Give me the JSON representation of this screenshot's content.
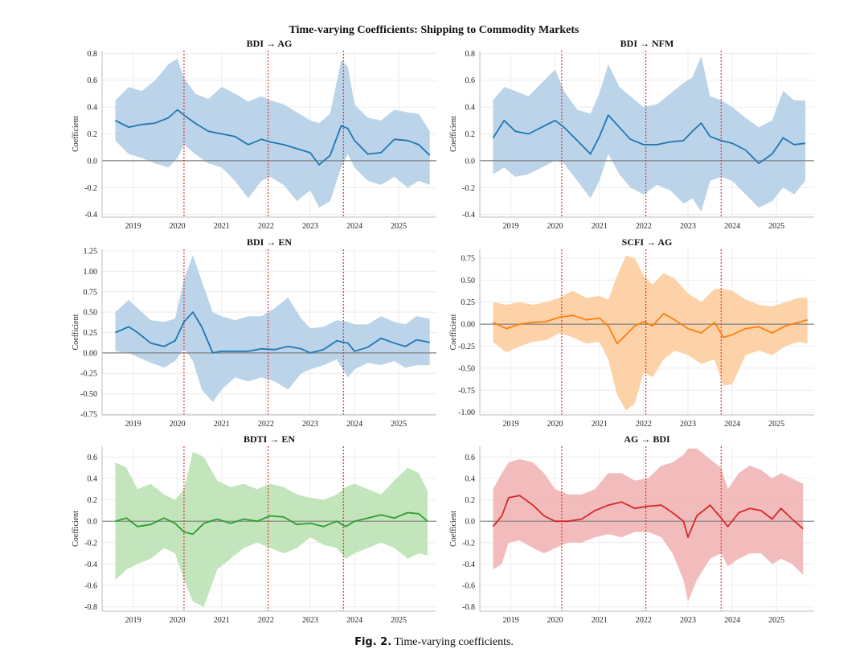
{
  "figure": {
    "suptitle": "Time-varying Coefficients: Shipping to Commodity Markets",
    "caption_label": "Fig. 2.",
    "caption_text": "Time-varying coefficients."
  },
  "colors": {
    "blue_line": "#1f77b4",
    "blue_band": "#b7d2e8",
    "orange_line": "#ff7f0e",
    "orange_band": "#fdd0a4",
    "green_line": "#2ca02c",
    "green_band": "#c0e4b8",
    "red_line": "#d62728",
    "red_band": "#f2b8b8",
    "vline": "#e03030",
    "zero": "#808080",
    "grid": "#ececec"
  },
  "chart_data": [
    {
      "type": "line",
      "title": "BDI → AG",
      "ylabel": "Coefficient",
      "xlim": [
        2018.3,
        2025.85
      ],
      "ylim": [
        -0.42,
        0.82
      ],
      "yticks": [
        -0.4,
        -0.2,
        0.0,
        0.2,
        0.4,
        0.6,
        0.8
      ],
      "ytick_labels": [
        "-0.4",
        "-0.2",
        "0.0",
        "0.2",
        "0.4",
        "0.6",
        "0.8"
      ],
      "xticks": [
        2019,
        2020,
        2021,
        2022,
        2023,
        2024,
        2025
      ],
      "xtick_labels": [
        "2019",
        "2020",
        "2021",
        "2022",
        "2023",
        "2024",
        "2025"
      ],
      "vlines": [
        2020.15,
        2022.05,
        2023.75
      ],
      "color": "blue",
      "series": [
        {
          "name": "coefficient",
          "x": [
            2018.6,
            2018.9,
            2019.2,
            2019.5,
            2019.8,
            2020.0,
            2020.15,
            2020.4,
            2020.7,
            2021.0,
            2021.3,
            2021.6,
            2021.9,
            2022.1,
            2022.4,
            2022.7,
            2023.0,
            2023.2,
            2023.45,
            2023.7,
            2023.85,
            2024.0,
            2024.3,
            2024.6,
            2024.9,
            2025.2,
            2025.45,
            2025.7
          ],
          "y": [
            0.3,
            0.25,
            0.27,
            0.28,
            0.32,
            0.38,
            0.34,
            0.28,
            0.22,
            0.2,
            0.18,
            0.12,
            0.16,
            0.14,
            0.12,
            0.09,
            0.06,
            -0.03,
            0.04,
            0.26,
            0.24,
            0.15,
            0.05,
            0.06,
            0.16,
            0.15,
            0.12,
            0.04
          ],
          "lower": [
            0.15,
            0.05,
            0.02,
            -0.02,
            -0.05,
            0.02,
            0.12,
            0.05,
            -0.02,
            -0.05,
            -0.15,
            -0.28,
            -0.15,
            -0.12,
            -0.18,
            -0.3,
            -0.22,
            -0.35,
            -0.3,
            -0.05,
            0.05,
            -0.05,
            -0.15,
            -0.18,
            -0.12,
            -0.2,
            -0.15,
            -0.18
          ],
          "upper": [
            0.45,
            0.55,
            0.52,
            0.6,
            0.72,
            0.76,
            0.62,
            0.5,
            0.46,
            0.55,
            0.5,
            0.44,
            0.48,
            0.45,
            0.42,
            0.36,
            0.3,
            0.28,
            0.35,
            0.75,
            0.7,
            0.42,
            0.32,
            0.3,
            0.38,
            0.36,
            0.35,
            0.22
          ]
        }
      ]
    },
    {
      "type": "line",
      "title": "BDI → NFM",
      "ylabel": "Coefficient",
      "xlim": [
        2018.3,
        2025.85
      ],
      "ylim": [
        -0.42,
        0.82
      ],
      "yticks": [
        -0.4,
        -0.2,
        0.0,
        0.2,
        0.4,
        0.6,
        0.8
      ],
      "ytick_labels": [
        "-0.4",
        "-0.2",
        "0.0",
        "0.2",
        "0.4",
        "0.6",
        "0.8"
      ],
      "xticks": [
        2019,
        2020,
        2021,
        2022,
        2023,
        2024,
        2025
      ],
      "xtick_labels": [
        "2019",
        "2020",
        "2021",
        "2022",
        "2023",
        "2024",
        "2025"
      ],
      "vlines": [
        2020.15,
        2022.05,
        2023.75
      ],
      "color": "blue",
      "series": [
        {
          "name": "coefficient",
          "x": [
            2018.6,
            2018.85,
            2019.1,
            2019.4,
            2019.7,
            2020.0,
            2020.2,
            2020.5,
            2020.8,
            2021.0,
            2021.2,
            2021.45,
            2021.7,
            2022.0,
            2022.3,
            2022.6,
            2022.9,
            2023.1,
            2023.3,
            2023.5,
            2023.75,
            2024.0,
            2024.3,
            2024.6,
            2024.9,
            2025.15,
            2025.4,
            2025.65
          ],
          "y": [
            0.17,
            0.3,
            0.22,
            0.2,
            0.25,
            0.3,
            0.25,
            0.15,
            0.05,
            0.18,
            0.34,
            0.25,
            0.16,
            0.12,
            0.12,
            0.14,
            0.15,
            0.22,
            0.28,
            0.18,
            0.15,
            0.13,
            0.08,
            -0.02,
            0.05,
            0.17,
            0.12,
            0.13
          ],
          "lower": [
            -0.1,
            -0.05,
            -0.12,
            -0.1,
            -0.05,
            0.0,
            -0.02,
            -0.15,
            -0.28,
            -0.15,
            0.05,
            -0.1,
            -0.2,
            -0.25,
            -0.18,
            -0.22,
            -0.32,
            -0.28,
            -0.38,
            -0.15,
            -0.12,
            -0.15,
            -0.25,
            -0.35,
            -0.3,
            -0.2,
            -0.25,
            -0.15
          ],
          "upper": [
            0.45,
            0.55,
            0.52,
            0.48,
            0.58,
            0.68,
            0.52,
            0.38,
            0.35,
            0.5,
            0.72,
            0.55,
            0.48,
            0.4,
            0.42,
            0.5,
            0.58,
            0.62,
            0.78,
            0.48,
            0.45,
            0.4,
            0.32,
            0.25,
            0.3,
            0.52,
            0.45,
            0.45
          ]
        }
      ]
    },
    {
      "type": "line",
      "title": "BDI → EN",
      "ylabel": "Coefficient",
      "xlim": [
        2018.3,
        2025.85
      ],
      "ylim": [
        -0.76,
        1.27
      ],
      "yticks": [
        -0.75,
        -0.5,
        -0.25,
        0.0,
        0.25,
        0.5,
        0.75,
        1.0,
        1.25
      ],
      "ytick_labels": [
        "-0.75",
        "-0.50",
        "-0.25",
        "0.00",
        "0.25",
        "0.50",
        "0.75",
        "1.00",
        "1.25"
      ],
      "xticks": [
        2019,
        2020,
        2021,
        2022,
        2023,
        2024,
        2025
      ],
      "xtick_labels": [
        "2019",
        "2020",
        "2021",
        "2022",
        "2023",
        "2024",
        "2025"
      ],
      "vlines": [
        2020.15,
        2022.05,
        2023.75
      ],
      "color": "blue",
      "series": [
        {
          "name": "coefficient",
          "x": [
            2018.6,
            2018.9,
            2019.1,
            2019.4,
            2019.7,
            2019.95,
            2020.15,
            2020.35,
            2020.55,
            2020.8,
            2021.0,
            2021.3,
            2021.6,
            2021.9,
            2022.2,
            2022.5,
            2022.8,
            2023.0,
            2023.3,
            2023.6,
            2023.85,
            2024.0,
            2024.3,
            2024.6,
            2024.9,
            2025.15,
            2025.4,
            2025.7
          ],
          "y": [
            0.25,
            0.32,
            0.25,
            0.12,
            0.08,
            0.15,
            0.38,
            0.5,
            0.32,
            0.0,
            0.02,
            0.02,
            0.02,
            0.05,
            0.04,
            0.08,
            0.05,
            0.0,
            0.04,
            0.15,
            0.12,
            0.02,
            0.07,
            0.18,
            0.12,
            0.08,
            0.16,
            0.13
          ],
          "lower": [
            0.02,
            0.0,
            -0.05,
            -0.12,
            -0.18,
            -0.1,
            0.05,
            -0.1,
            -0.45,
            -0.6,
            -0.45,
            -0.3,
            -0.35,
            -0.3,
            -0.35,
            -0.45,
            -0.25,
            -0.2,
            -0.15,
            -0.08,
            -0.3,
            -0.2,
            -0.12,
            -0.15,
            -0.1,
            -0.18,
            -0.15,
            -0.15
          ],
          "upper": [
            0.5,
            0.65,
            0.55,
            0.4,
            0.38,
            0.42,
            0.9,
            1.2,
            0.88,
            0.5,
            0.45,
            0.4,
            0.45,
            0.45,
            0.55,
            0.68,
            0.42,
            0.3,
            0.32,
            0.4,
            0.38,
            0.35,
            0.35,
            0.45,
            0.38,
            0.35,
            0.45,
            0.42
          ]
        }
      ]
    },
    {
      "type": "line",
      "title": "SCFI → AG",
      "ylabel": "Coefficient",
      "xlim": [
        2018.3,
        2025.85
      ],
      "ylim": [
        -1.03,
        0.85
      ],
      "yticks": [
        -1.0,
        -0.75,
        -0.5,
        -0.25,
        0.0,
        0.25,
        0.5,
        0.75
      ],
      "ytick_labels": [
        "-1.00",
        "-0.75",
        "-0.50",
        "-0.25",
        "0.00",
        "0.25",
        "0.50",
        "0.75"
      ],
      "xticks": [
        2019,
        2020,
        2021,
        2022,
        2023,
        2024,
        2025
      ],
      "xtick_labels": [
        "2019",
        "2020",
        "2021",
        "2022",
        "2023",
        "2024",
        "2025"
      ],
      "vlines": [
        2020.15,
        2022.05,
        2023.75
      ],
      "color": "orange",
      "series": [
        {
          "name": "coefficient",
          "x": [
            2018.6,
            2018.9,
            2019.2,
            2019.5,
            2019.8,
            2020.1,
            2020.4,
            2020.7,
            2021.0,
            2021.2,
            2021.4,
            2021.6,
            2021.8,
            2022.0,
            2022.2,
            2022.45,
            2022.7,
            2023.0,
            2023.3,
            2023.6,
            2023.8,
            2024.0,
            2024.3,
            2024.6,
            2024.9,
            2025.2,
            2025.5,
            2025.7
          ],
          "y": [
            0.02,
            -0.05,
            0.0,
            0.02,
            0.03,
            0.08,
            0.1,
            0.05,
            0.07,
            -0.02,
            -0.22,
            -0.12,
            -0.02,
            0.03,
            -0.02,
            0.12,
            0.05,
            -0.05,
            -0.1,
            0.02,
            -0.15,
            -0.12,
            -0.05,
            -0.03,
            -0.1,
            -0.02,
            0.02,
            0.05
          ],
          "lower": [
            -0.2,
            -0.32,
            -0.25,
            -0.2,
            -0.18,
            -0.1,
            -0.15,
            -0.22,
            -0.2,
            -0.4,
            -0.8,
            -0.98,
            -0.9,
            -0.55,
            -0.6,
            -0.4,
            -0.3,
            -0.35,
            -0.45,
            -0.4,
            -0.7,
            -0.68,
            -0.35,
            -0.3,
            -0.35,
            -0.25,
            -0.2,
            -0.22
          ],
          "upper": [
            0.25,
            0.22,
            0.25,
            0.22,
            0.25,
            0.3,
            0.38,
            0.3,
            0.32,
            0.28,
            0.55,
            0.78,
            0.75,
            0.55,
            0.45,
            0.58,
            0.52,
            0.35,
            0.25,
            0.4,
            0.4,
            0.38,
            0.28,
            0.22,
            0.2,
            0.25,
            0.3,
            0.3
          ]
        }
      ]
    },
    {
      "type": "line",
      "title": "BDTI → EN",
      "ylabel": "Coefficient",
      "xlim": [
        2018.3,
        2025.85
      ],
      "ylim": [
        -0.84,
        0.7
      ],
      "yticks": [
        -0.8,
        -0.6,
        -0.4,
        -0.2,
        0.0,
        0.2,
        0.4,
        0.6
      ],
      "ytick_labels": [
        "-0.8",
        "-0.6",
        "-0.4",
        "-0.2",
        "0.0",
        "0.2",
        "0.4",
        "0.6"
      ],
      "xticks": [
        2019,
        2020,
        2021,
        2022,
        2023,
        2024,
        2025
      ],
      "xtick_labels": [
        "2019",
        "2020",
        "2021",
        "2022",
        "2023",
        "2024",
        "2025"
      ],
      "vlines": [
        2020.15,
        2022.05,
        2023.75
      ],
      "color": "green",
      "series": [
        {
          "name": "coefficient",
          "x": [
            2018.6,
            2018.85,
            2019.1,
            2019.4,
            2019.7,
            2019.95,
            2020.15,
            2020.35,
            2020.6,
            2020.9,
            2021.2,
            2021.5,
            2021.8,
            2022.1,
            2022.4,
            2022.7,
            2023.0,
            2023.3,
            2023.6,
            2023.8,
            2024.0,
            2024.3,
            2024.6,
            2024.9,
            2025.2,
            2025.45,
            2025.65
          ],
          "y": [
            0.0,
            0.03,
            -0.05,
            -0.03,
            0.03,
            -0.02,
            -0.1,
            -0.12,
            -0.02,
            0.02,
            -0.02,
            0.02,
            0.0,
            0.05,
            0.04,
            -0.03,
            -0.02,
            -0.05,
            0.0,
            -0.05,
            0.0,
            0.03,
            0.06,
            0.03,
            0.08,
            0.07,
            0.0
          ],
          "lower": [
            -0.55,
            -0.45,
            -0.4,
            -0.35,
            -0.25,
            -0.3,
            -0.55,
            -0.75,
            -0.8,
            -0.45,
            -0.35,
            -0.25,
            -0.2,
            -0.25,
            -0.3,
            -0.25,
            -0.15,
            -0.22,
            -0.25,
            -0.35,
            -0.3,
            -0.25,
            -0.2,
            -0.25,
            -0.35,
            -0.3,
            -0.32
          ],
          "upper": [
            0.55,
            0.5,
            0.3,
            0.35,
            0.25,
            0.2,
            0.3,
            0.65,
            0.6,
            0.38,
            0.32,
            0.35,
            0.3,
            0.35,
            0.32,
            0.25,
            0.22,
            0.2,
            0.25,
            0.32,
            0.35,
            0.3,
            0.25,
            0.38,
            0.5,
            0.45,
            0.28
          ]
        }
      ]
    },
    {
      "type": "line",
      "title": "AG → BDI",
      "ylabel": "Coefficient",
      "xlim": [
        2018.3,
        2025.85
      ],
      "ylim": [
        -0.84,
        0.7
      ],
      "yticks": [
        -0.8,
        -0.6,
        -0.4,
        -0.2,
        0.0,
        0.2,
        0.4,
        0.6
      ],
      "ytick_labels": [
        "-0.8",
        "-0.6",
        "-0.4",
        "-0.2",
        "0.0",
        "0.2",
        "0.4",
        "0.6"
      ],
      "xticks": [
        2019,
        2020,
        2021,
        2022,
        2023,
        2024,
        2025
      ],
      "xtick_labels": [
        "2019",
        "2020",
        "2021",
        "2022",
        "2023",
        "2024",
        "2025"
      ],
      "vlines": [
        2020.15,
        2022.05,
        2023.75
      ],
      "color": "red",
      "series": [
        {
          "name": "coefficient",
          "x": [
            2018.6,
            2018.8,
            2018.95,
            2019.2,
            2019.5,
            2019.75,
            2020.0,
            2020.3,
            2020.6,
            2020.9,
            2021.2,
            2021.5,
            2021.8,
            2022.1,
            2022.4,
            2022.65,
            2022.9,
            2023.0,
            2023.2,
            2023.5,
            2023.75,
            2023.9,
            2024.15,
            2024.4,
            2024.65,
            2024.9,
            2025.1,
            2025.35,
            2025.6
          ],
          "y": [
            -0.05,
            0.05,
            0.22,
            0.24,
            0.15,
            0.05,
            0.0,
            0.0,
            0.02,
            0.1,
            0.15,
            0.18,
            0.12,
            0.14,
            0.15,
            0.08,
            0.0,
            -0.15,
            0.05,
            0.15,
            0.03,
            -0.05,
            0.08,
            0.12,
            0.1,
            0.02,
            0.12,
            0.02,
            -0.07
          ],
          "lower": [
            -0.45,
            -0.4,
            -0.2,
            -0.18,
            -0.25,
            -0.3,
            -0.25,
            -0.2,
            -0.2,
            -0.15,
            -0.12,
            -0.15,
            -0.1,
            -0.1,
            -0.15,
            -0.3,
            -0.55,
            -0.75,
            -0.55,
            -0.35,
            -0.3,
            -0.42,
            -0.35,
            -0.3,
            -0.3,
            -0.4,
            -0.35,
            -0.4,
            -0.5
          ],
          "upper": [
            0.3,
            0.45,
            0.55,
            0.58,
            0.55,
            0.45,
            0.3,
            0.25,
            0.25,
            0.3,
            0.45,
            0.45,
            0.38,
            0.4,
            0.52,
            0.55,
            0.62,
            0.68,
            0.68,
            0.58,
            0.5,
            0.3,
            0.45,
            0.52,
            0.48,
            0.4,
            0.45,
            0.4,
            0.35
          ]
        }
      ]
    }
  ]
}
